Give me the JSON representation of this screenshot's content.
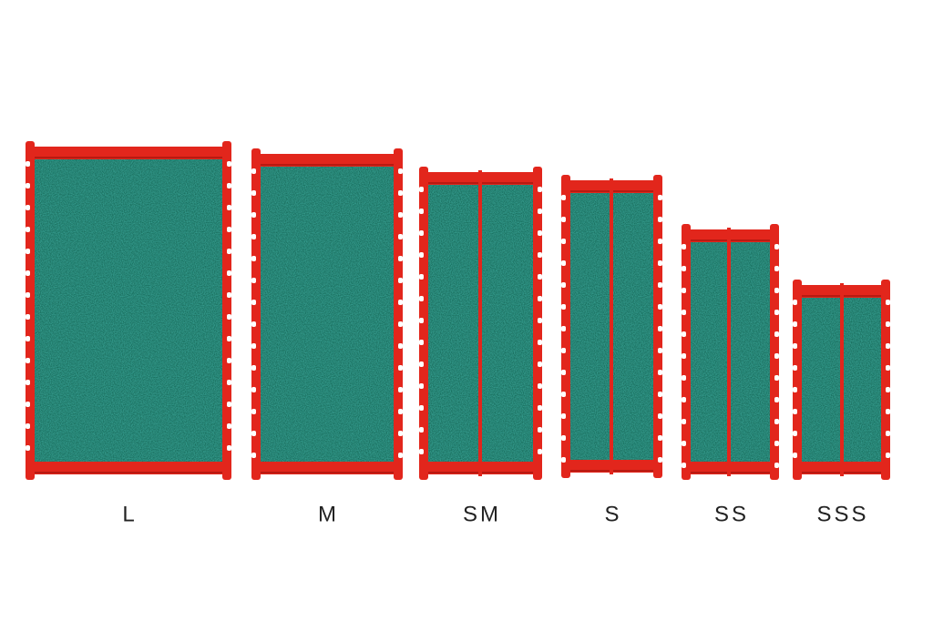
{
  "items": [
    {
      "label": "L"
    },
    {
      "label": "M"
    },
    {
      "label": "SM"
    },
    {
      "label": "S"
    },
    {
      "label": "SS"
    },
    {
      "label": "SSS"
    }
  ]
}
